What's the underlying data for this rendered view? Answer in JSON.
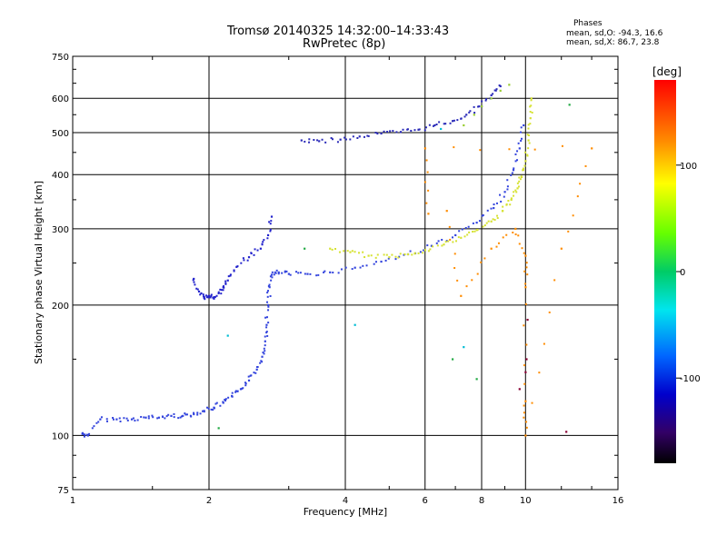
{
  "header": {
    "title": "Tromsø 20140325 14:32:00–14:33:43",
    "subtitle": "RwPretec (8p)",
    "phases_heading": "Phases",
    "phase_o": "mean, sd,O: -94.3, 16.6",
    "phase_x": "mean, sd,X:  86.7, 23.8"
  },
  "chart_data": {
    "type": "scatter",
    "xlabel": "Frequency [MHz]",
    "ylabel": "Stationary phase Virtual Height [km]",
    "x_scale": "log",
    "y_scale": "log",
    "xlim": [
      1,
      16
    ],
    "ylim": [
      75,
      750
    ],
    "x_ticks": [
      1,
      2,
      4,
      6,
      8,
      10,
      16
    ],
    "x_tick_labels": [
      "1",
      "2",
      "4",
      "6",
      "8",
      "10",
      "16"
    ],
    "y_ticks": [
      75,
      100,
      200,
      300,
      400,
      500,
      600,
      750
    ],
    "y_tick_labels": [
      "75",
      "100",
      "200",
      "300",
      "400",
      "500",
      "600",
      "750"
    ],
    "grid": true,
    "colorbar": {
      "unit": "[deg]",
      "range": [
        -180,
        180
      ],
      "ticks": [
        100,
        0,
        -100
      ],
      "tick_labels": [
        "100",
        "0",
        "-100"
      ]
    },
    "series": [
      {
        "color": "#3344dd",
        "points": [
          [
            1.05,
            101
          ],
          [
            1.08,
            100
          ],
          [
            1.15,
            109
          ],
          [
            1.25,
            109
          ],
          [
            1.35,
            109
          ],
          [
            1.45,
            110
          ],
          [
            1.55,
            110
          ],
          [
            1.65,
            111
          ],
          [
            1.75,
            111
          ],
          [
            1.85,
            112
          ],
          [
            1.95,
            114
          ],
          [
            2.05,
            116
          ],
          [
            2.15,
            119
          ],
          [
            2.25,
            123
          ],
          [
            2.35,
            128
          ],
          [
            2.45,
            134
          ],
          [
            2.55,
            142
          ],
          [
            2.62,
            152
          ],
          [
            2.66,
            165
          ],
          [
            2.68,
            180
          ],
          [
            2.7,
            200
          ],
          [
            2.72,
            220
          ],
          [
            2.75,
            235
          ],
          [
            2.85,
            238
          ],
          [
            3.0,
            236
          ],
          [
            3.3,
            236
          ],
          [
            3.7,
            238
          ],
          [
            4.2,
            244
          ],
          [
            4.8,
            252
          ],
          [
            5.5,
            262
          ],
          [
            6.2,
            274
          ],
          [
            7.0,
            290
          ],
          [
            7.8,
            310
          ],
          [
            8.5,
            335
          ],
          [
            9.0,
            365
          ],
          [
            9.4,
            410
          ],
          [
            9.7,
            460
          ],
          [
            9.9,
            520
          ]
        ]
      },
      {
        "color": "#2222cc",
        "points": [
          [
            1.85,
            230
          ],
          [
            1.9,
            215
          ],
          [
            1.95,
            208
          ],
          [
            2.0,
            210
          ],
          [
            2.05,
            207
          ],
          [
            2.1,
            213
          ],
          [
            2.15,
            220
          ],
          [
            2.2,
            228
          ],
          [
            2.3,
            245
          ],
          [
            2.45,
            258
          ],
          [
            2.6,
            270
          ],
          [
            2.7,
            290
          ],
          [
            2.75,
            320
          ]
        ]
      },
      {
        "color": "#2a2ab8",
        "points": [
          [
            3.2,
            480
          ],
          [
            3.5,
            478
          ],
          [
            3.9,
            482
          ],
          [
            4.3,
            490
          ],
          [
            4.8,
            498
          ],
          [
            5.3,
            502
          ],
          [
            5.8,
            508
          ],
          [
            6.3,
            520
          ],
          [
            6.9,
            532
          ],
          [
            7.4,
            550
          ],
          [
            7.9,
            575
          ],
          [
            8.4,
            610
          ],
          [
            8.8,
            640
          ]
        ]
      },
      {
        "color": "#d6e233",
        "points": [
          [
            3.7,
            270
          ],
          [
            4.1,
            265
          ],
          [
            4.5,
            260
          ],
          [
            5.0,
            258
          ],
          [
            5.5,
            262
          ],
          [
            6.0,
            268
          ],
          [
            6.6,
            276
          ],
          [
            7.2,
            286
          ],
          [
            7.8,
            298
          ],
          [
            8.4,
            312
          ],
          [
            8.9,
            330
          ],
          [
            9.3,
            350
          ],
          [
            9.6,
            372
          ],
          [
            9.8,
            395
          ],
          [
            10.0,
            430
          ],
          [
            10.15,
            480
          ],
          [
            10.25,
            540
          ],
          [
            10.3,
            600
          ]
        ]
      },
      {
        "color": "#9acd32",
        "points": [
          [
            7.3,
            520
          ],
          [
            7.7,
            550
          ],
          [
            8.0,
            575
          ],
          [
            8.4,
            600
          ],
          [
            8.8,
            625
          ],
          [
            9.2,
            645
          ]
        ]
      },
      {
        "color": "#ff8c00",
        "points": [
          [
            6.7,
            330
          ],
          [
            7.2,
            210
          ],
          [
            8.4,
            270
          ],
          [
            9.5,
            300
          ],
          [
            10.0,
            260
          ],
          [
            10.0,
            220
          ],
          [
            10.0,
            120
          ],
          [
            10.0,
            100
          ],
          [
            12.0,
            270
          ],
          [
            14.0,
            460
          ],
          [
            6.0,
            460
          ],
          [
            6.1,
            325
          ]
        ]
      },
      {
        "color": "#22aa44",
        "points": [
          [
            2.1,
            104
          ],
          [
            3.25,
            270
          ],
          [
            6.9,
            150
          ],
          [
            7.8,
            135
          ],
          [
            12.5,
            580
          ]
        ]
      },
      {
        "color": "#00bcd4",
        "points": [
          [
            2.2,
            170
          ],
          [
            4.2,
            180
          ],
          [
            6.5,
            510
          ],
          [
            7.3,
            160
          ]
        ]
      },
      {
        "color": "#880033",
        "points": [
          [
            10.05,
            150
          ],
          [
            10.1,
            185
          ],
          [
            10.0,
            140
          ],
          [
            9.7,
            128
          ],
          [
            12.3,
            102
          ]
        ]
      }
    ]
  }
}
